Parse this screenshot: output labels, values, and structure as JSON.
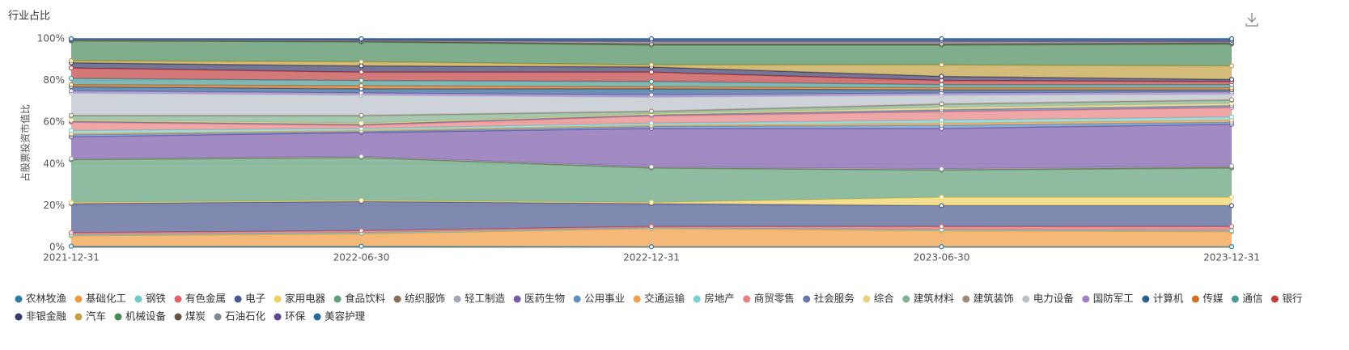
{
  "chart_data": {
    "type": "stacked_area",
    "title": "行业占比",
    "y_axis_label": "占股票投资市值比",
    "categories": [
      "2021-12-31",
      "2022-06-30",
      "2022-12-31",
      "2023-06-30",
      "2023-12-31"
    ],
    "ylim": [
      0,
      100
    ],
    "yticks": [
      {
        "value": 0,
        "label": "0%"
      },
      {
        "value": 20,
        "label": "20%"
      },
      {
        "value": 40,
        "label": "40%"
      },
      {
        "value": 60,
        "label": "60%"
      },
      {
        "value": 80,
        "label": "80%"
      },
      {
        "value": 100,
        "label": "100%"
      }
    ],
    "grid": true,
    "series": [
      {
        "name": "农林牧渔",
        "color": "#2f7ca0",
        "values": [
          0.5,
          0.5,
          0.3,
          0.3,
          0.3
        ]
      },
      {
        "name": "基础化工",
        "color": "#f09a3e",
        "values": [
          5,
          6,
          8.7,
          7.7,
          7.2
        ]
      },
      {
        "name": "钢铁",
        "color": "#6ccaca",
        "values": [
          0.5,
          0.5,
          0.3,
          0.5,
          0.5
        ]
      },
      {
        "name": "有色金属",
        "color": "#e06464",
        "values": [
          1,
          1,
          0.7,
          1.5,
          2
        ]
      },
      {
        "name": "电子",
        "color": "#4a5890",
        "values": [
          14,
          14,
          11,
          10,
          10
        ]
      },
      {
        "name": "家用电器",
        "color": "#f0d060",
        "values": [
          0.5,
          0.5,
          0.5,
          4,
          4
        ]
      },
      {
        "name": "食品饮料",
        "color": "#5fa078",
        "values": [
          20.5,
          20.5,
          16.5,
          13,
          14
        ]
      },
      {
        "name": "纺织服饰",
        "color": "#8c6d5a",
        "values": [
          0.3,
          0.3,
          0.3,
          0.3,
          0.5
        ]
      },
      {
        "name": "轻工制造",
        "color": "#a0a8b8",
        "values": [
          0.3,
          0.3,
          0.3,
          0.3,
          0.5
        ]
      },
      {
        "name": "医药生物",
        "color": "#7a58a8",
        "values": [
          10.4,
          11.4,
          18.4,
          19.4,
          20
        ]
      },
      {
        "name": "公用事业",
        "color": "#5a8fc0",
        "values": [
          1,
          0.5,
          1,
          1.5,
          1
        ]
      },
      {
        "name": "交通运输",
        "color": "#f0a04b",
        "values": [
          0.5,
          0.5,
          0.5,
          1,
          1
        ]
      },
      {
        "name": "房地产",
        "color": "#7ad0d0",
        "values": [
          1.5,
          1,
          1,
          1.5,
          1.5
        ]
      },
      {
        "name": "商贸零售",
        "color": "#e88080",
        "values": [
          4,
          1.5,
          3.5,
          4,
          4.5
        ]
      },
      {
        "name": "社会服务",
        "color": "#6a78a8",
        "values": [
          0.5,
          0.5,
          0.5,
          1,
          1
        ]
      },
      {
        "name": "综合",
        "color": "#e8d080",
        "values": [
          0.5,
          0.5,
          0.5,
          1,
          1
        ]
      },
      {
        "name": "建筑材料",
        "color": "#80b090",
        "values": [
          2,
          3.5,
          1,
          1.5,
          1.5
        ]
      },
      {
        "name": "建筑装饰",
        "color": "#a08878",
        "values": [
          0.3,
          0.3,
          0.3,
          0.3,
          0.3
        ]
      },
      {
        "name": "电力设备",
        "color": "#b8c0c8",
        "values": [
          10.7,
          9.7,
          6.7,
          4.2,
          2.7
        ]
      },
      {
        "name": "国防军工",
        "color": "#a080c8",
        "values": [
          1,
          1,
          1,
          1,
          1
        ]
      },
      {
        "name": "计算机",
        "color": "#2f5f8f",
        "values": [
          2,
          2,
          3,
          1.5,
          1
        ]
      },
      {
        "name": "传媒",
        "color": "#d07020",
        "values": [
          1,
          1.5,
          1,
          1,
          1
        ]
      },
      {
        "name": "通信",
        "color": "#4a9a9a",
        "values": [
          3,
          2.5,
          2.5,
          1.5,
          1.5
        ]
      },
      {
        "name": "银行",
        "color": "#c04040",
        "values": [
          5,
          4,
          4.5,
          2,
          1.5
        ]
      },
      {
        "name": "非银金融",
        "color": "#3a3a6a",
        "values": [
          2.5,
          3,
          2.5,
          2,
          1
        ]
      },
      {
        "name": "汽车",
        "color": "#c0a040",
        "values": [
          1,
          2,
          1,
          5.5,
          6.5
        ]
      },
      {
        "name": "机械设备",
        "color": "#4a8a5a",
        "values": [
          9.5,
          9.5,
          9.5,
          9.5,
          10.5
        ]
      },
      {
        "name": "煤炭",
        "color": "#6a5040",
        "values": [
          0.3,
          0.3,
          0.5,
          0.5,
          0.5
        ]
      },
      {
        "name": "石油石化",
        "color": "#808890",
        "values": [
          0.3,
          0.4,
          1,
          1,
          0.5
        ]
      },
      {
        "name": "环保",
        "color": "#5a4a8a",
        "values": [
          0.2,
          0.4,
          0.8,
          0.8,
          0.8
        ]
      },
      {
        "name": "美容护理",
        "color": "#2a6a9a",
        "values": [
          0.2,
          0.4,
          0.7,
          0.7,
          0.7
        ]
      }
    ]
  }
}
